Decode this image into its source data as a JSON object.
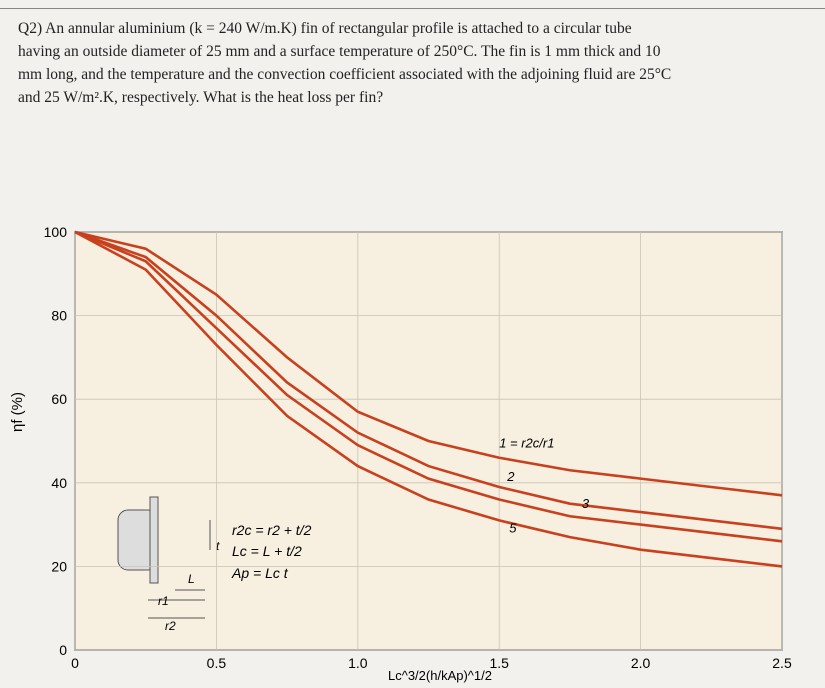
{
  "question": [
    "Q2) An annular aluminium (k = 240 W/m.K) fin of rectangular profile is attached to a circular tube",
    "having an outside diameter of 25 mm and a surface temperature of 250°C. The fin is 1 mm thick and 10",
    "mm long, and the temperature and the convection coefficient associated with the adjoining fluid are 25°C",
    "and 25 W/m².K, respectively. What is the heat loss per fin?"
  ],
  "chart_data": {
    "type": "line",
    "xlabel": "Lc^3/2(h/kAp)^1/2",
    "ylabel": "ηf (%)",
    "x": [
      0,
      0.25,
      0.5,
      0.75,
      1.0,
      1.25,
      1.5,
      1.75,
      2.0,
      2.25,
      2.5
    ],
    "series": [
      {
        "name": "1 = r2c/r1",
        "color": "#c8401e",
        "values": [
          100,
          96,
          85,
          70,
          57,
          50,
          46,
          43,
          41,
          39,
          37
        ]
      },
      {
        "name": "2",
        "color": "#c8401e",
        "values": [
          100,
          94,
          80,
          64,
          52,
          44,
          39,
          35,
          33,
          31,
          29
        ]
      },
      {
        "name": "3",
        "color": "#c8401e",
        "values": [
          100,
          93,
          77,
          61,
          49,
          41,
          36,
          32,
          30,
          28,
          26
        ]
      },
      {
        "name": "5",
        "color": "#c8401e",
        "values": [
          100,
          91,
          73,
          56,
          44,
          36,
          31,
          27,
          24,
          22,
          20
        ]
      }
    ],
    "xlim": [
      0,
      2.5
    ],
    "xticks": [
      0,
      {
        "value": 0.5,
        "label": "0.5"
      },
      {
        "value": 1.0,
        "label": "1.0"
      },
      {
        "value": 1.5,
        "label": "1.5"
      },
      {
        "value": 2.0,
        "label": "2.0"
      },
      {
        "value": 2.5,
        "label": "2.5"
      }
    ],
    "ylim": [
      0,
      100
    ],
    "yticks": [
      0,
      20,
      40,
      60,
      80,
      100
    ],
    "grid": true,
    "inset": {
      "equations": [
        "r2c = r2 + t/2",
        "Lc = L + t/2",
        "Ap = Lc t"
      ],
      "labels": [
        "t",
        "L",
        "r1",
        "r2"
      ]
    }
  }
}
